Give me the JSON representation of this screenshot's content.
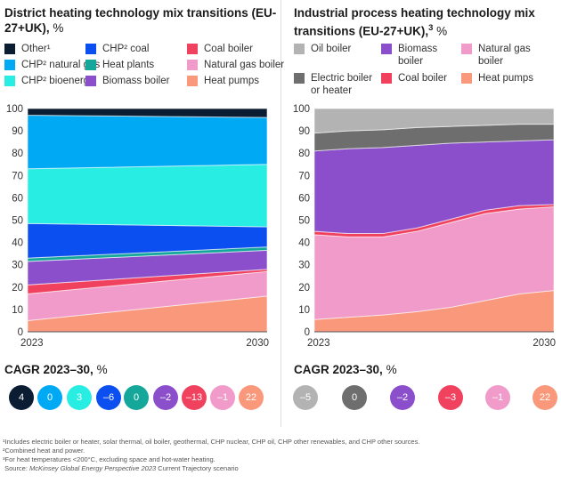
{
  "chart_data": [
    {
      "type": "area",
      "stacked": true,
      "title": "District heating technology mix transitions (EU-27+UK), %",
      "title_main": "District heating technology mix transitions (EU-27+UK),",
      "title_unit": "%",
      "x": [
        "2023",
        "2030"
      ],
      "ylim": [
        0,
        100
      ],
      "yticks": [
        0,
        10,
        20,
        30,
        40,
        50,
        60,
        70,
        80,
        90,
        100
      ],
      "series": [
        {
          "name": "Heat pumps",
          "color": "#f9987a",
          "values": [
            5,
            16
          ]
        },
        {
          "name": "Natural gas boiler",
          "color": "#f09bc9",
          "values": [
            12,
            11
          ]
        },
        {
          "name": "Coal boiler",
          "color": "#f0415e",
          "values": [
            4,
            1
          ]
        },
        {
          "name": "Biomass boiler",
          "color": "#8c4fcc",
          "values": [
            10.5,
            8.5
          ]
        },
        {
          "name": "Heat plants",
          "color": "#14a79a",
          "values": [
            1.5,
            1.5
          ]
        },
        {
          "name": "CHP² coal",
          "color": "#0b4ff0",
          "values": [
            15.5,
            9
          ]
        },
        {
          "name": "CHP² bioenergy",
          "color": "#27ede3",
          "values": [
            24.5,
            28
          ]
        },
        {
          "name": "CHP² natural gas",
          "color": "#00a9f4",
          "values": [
            24,
            21
          ]
        },
        {
          "name": "Other¹",
          "color": "#0b1d33",
          "values": [
            3,
            4
          ]
        }
      ],
      "legend_order": [
        8,
        5,
        2,
        7,
        4,
        1,
        6,
        3,
        0
      ],
      "cagr_title": "CAGR 2023–30,",
      "cagr_unit": "%",
      "cagr": [
        {
          "series": "Other¹",
          "value": "4"
        },
        {
          "series": "CHP² natural gas",
          "value": "0"
        },
        {
          "series": "CHP² bioenergy",
          "value": "3"
        },
        {
          "series": "CHP² coal",
          "value": "–6"
        },
        {
          "series": "Heat plants",
          "value": "0"
        },
        {
          "series": "Biomass boiler",
          "value": "–2"
        },
        {
          "series": "Coal boiler",
          "value": "–13"
        },
        {
          "series": "Natural gas boiler",
          "value": "–1"
        },
        {
          "series": "Heat pumps",
          "value": "22"
        }
      ]
    },
    {
      "type": "area",
      "stacked": true,
      "title": "Industrial process heating technology mix transitions (EU-27+UK),³ %",
      "title_main": "Industrial process heating technology mix transitions (EU-27+UK),",
      "title_sup": "3",
      "title_unit": "%",
      "x": [
        "2023",
        "2024",
        "2025",
        "2026",
        "2027",
        "2028",
        "2029",
        "2030"
      ],
      "xticks": [
        "2023",
        "2030"
      ],
      "ylim": [
        0,
        100
      ],
      "yticks": [
        0,
        10,
        20,
        30,
        40,
        50,
        60,
        70,
        80,
        90,
        100
      ],
      "series": [
        {
          "name": "Heat pumps",
          "color": "#f9987a",
          "values": [
            5.5,
            6.5,
            7.5,
            9,
            11,
            14,
            17,
            18.5
          ]
        },
        {
          "name": "Natural gas boiler",
          "color": "#f09bc9",
          "values": [
            38,
            36,
            35,
            36,
            38,
            39,
            38,
            37.5
          ]
        },
        {
          "name": "Coal boiler",
          "color": "#f0415e",
          "values": [
            1.5,
            1.5,
            1.5,
            1.5,
            1.5,
            1.5,
            1.5,
            1
          ]
        },
        {
          "name": "Biomass boiler",
          "color": "#8c4fcc",
          "values": [
            36,
            38,
            38.5,
            37,
            34,
            30.5,
            29,
            29
          ]
        },
        {
          "name": "Electric boiler or heater",
          "color": "#6e6e6e",
          "values": [
            8,
            8,
            8,
            8,
            7.5,
            7.5,
            7.5,
            7
          ]
        },
        {
          "name": "Oil boiler",
          "color": "#b3b3b3",
          "values": [
            11,
            10,
            9.5,
            8.5,
            8,
            7.5,
            7,
            7
          ]
        }
      ],
      "legend_order": [
        5,
        3,
        1,
        4,
        2,
        0
      ],
      "cagr_title": "CAGR 2023–30,",
      "cagr_unit": "%",
      "cagr": [
        {
          "series": "Oil boiler",
          "value": "–5"
        },
        {
          "series": "Electric boiler or heater",
          "value": "0"
        },
        {
          "series": "Biomass boiler",
          "value": "–2"
        },
        {
          "series": "Coal boiler",
          "value": "–3"
        },
        {
          "series": "Natural gas boiler",
          "value": "–1"
        },
        {
          "series": "Heat pumps",
          "value": "22"
        }
      ]
    }
  ],
  "footnotes": [
    "¹Includes electric boiler or heater, solar thermal, oil boiler, geothermal, CHP nuclear, CHP oil, CHP other renewables, and CHP other sources.",
    "²Combined heat and power.",
    "³For heat temperatures <200°C, excluding space and hot-water heating."
  ],
  "source": {
    "prefix": "Source: ",
    "publication": "McKinsey Global Energy Perspective 2023",
    "suffix": " Current Trajectory scenario"
  }
}
